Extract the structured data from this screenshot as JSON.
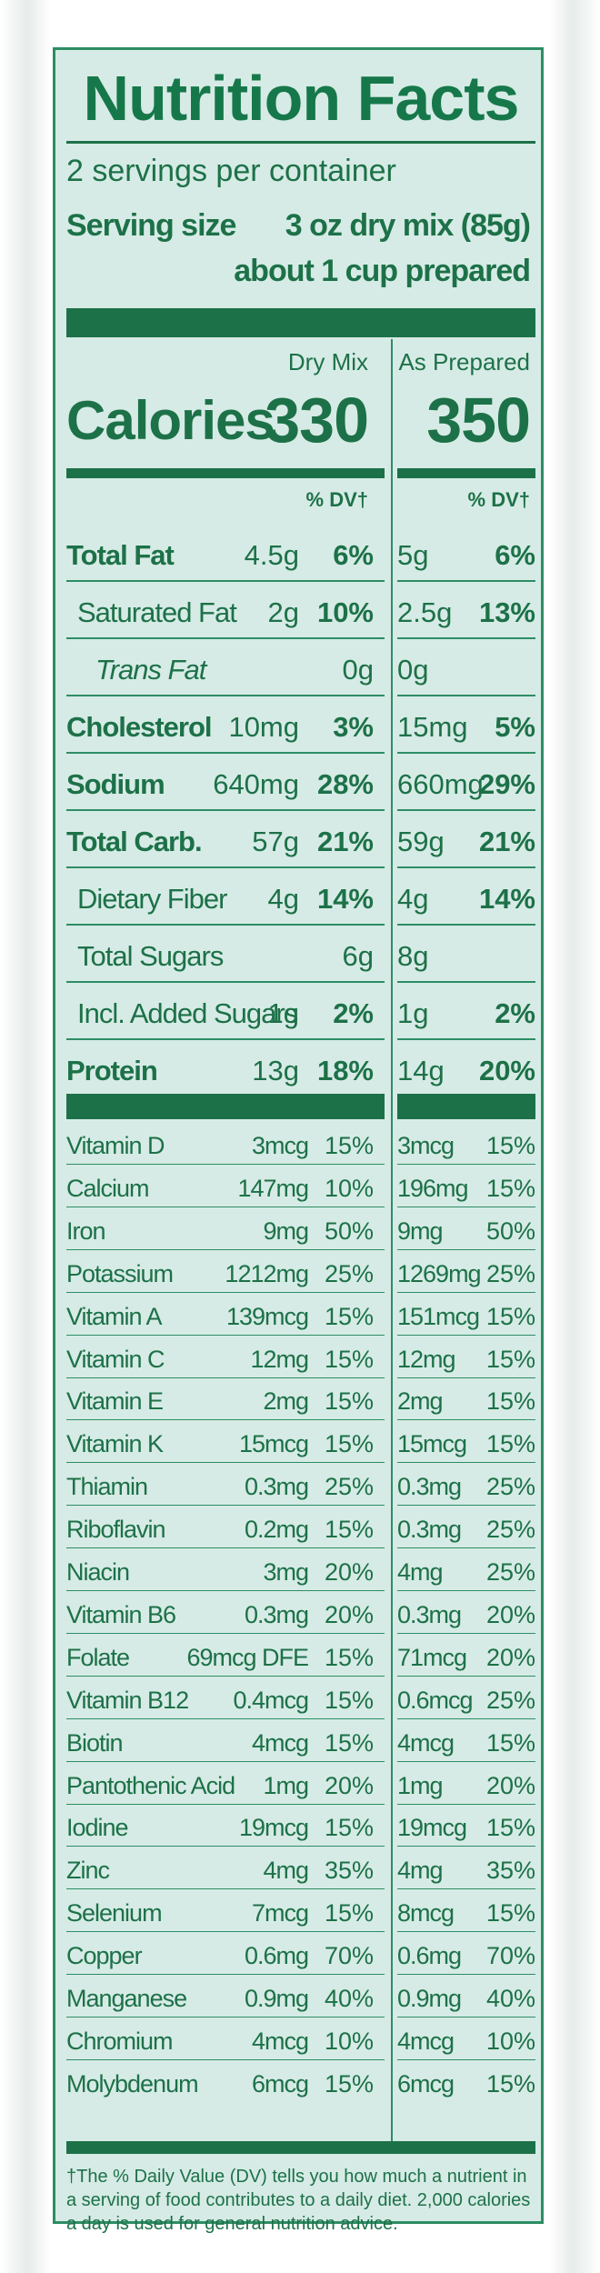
{
  "label": {
    "title": "Nutrition Facts",
    "servings_per_container": "2 servings per container",
    "serving_size_label": "Serving size",
    "serving_size_value": "3 oz dry mix (85g)",
    "serving_size_prepared": "about 1 cup prepared",
    "col_dry_mix": "Dry Mix",
    "col_as_prepared": "As Prepared",
    "calories_label": "Calories",
    "calories_dry": "330",
    "calories_prepared": "350",
    "dv_header": "% DV†",
    "footnote": "†The % Daily Value (DV) tells you how much a nutrient in a serving of  food contributes to a daily diet. 2,000 calories a day is used for general nutrition advice."
  },
  "macros": [
    {
      "name": "Total Fat",
      "bold": true,
      "indent": 0,
      "dry_amount": "4.5g",
      "dry_dv": "6%",
      "prep_amount": "5g",
      "prep_dv": "6%"
    },
    {
      "name": "Saturated Fat",
      "bold": false,
      "indent": 1,
      "dry_amount": "2g",
      "dry_dv": "10%",
      "prep_amount": "2.5g",
      "prep_dv": "13%"
    },
    {
      "name": "Trans Fat",
      "bold": false,
      "indent": 2,
      "dry_amount": "0g",
      "dry_dv": "",
      "prep_amount": "0g",
      "prep_dv": ""
    },
    {
      "name": "Cholesterol",
      "bold": true,
      "indent": 0,
      "dry_amount": "10mg",
      "dry_dv": "3%",
      "prep_amount": "15mg",
      "prep_dv": "5%"
    },
    {
      "name": "Sodium",
      "bold": true,
      "indent": 0,
      "dry_amount": "640mg",
      "dry_dv": "28%",
      "prep_amount": "660mg",
      "prep_dv": "29%"
    },
    {
      "name": "Total Carb.",
      "bold": true,
      "indent": 0,
      "dry_amount": "57g",
      "dry_dv": "21%",
      "prep_amount": "59g",
      "prep_dv": "21%"
    },
    {
      "name": "Dietary Fiber",
      "bold": false,
      "indent": 1,
      "dry_amount": "4g",
      "dry_dv": "14%",
      "prep_amount": "4g",
      "prep_dv": "14%"
    },
    {
      "name": "Total Sugars",
      "bold": false,
      "indent": 1,
      "dry_amount": "6g",
      "dry_dv": "",
      "prep_amount": "8g",
      "prep_dv": ""
    },
    {
      "name": "Incl. Added Sugars",
      "bold": false,
      "indent": 1,
      "dry_amount": "1g",
      "dry_dv": "2%",
      "prep_amount": "1g",
      "prep_dv": "2%"
    },
    {
      "name": "Protein",
      "bold": true,
      "indent": 0,
      "dry_amount": "13g",
      "dry_dv": "18%",
      "prep_amount": "14g",
      "prep_dv": "20%"
    }
  ],
  "vitamins": [
    {
      "name": "Vitamin D",
      "dry_amount": "3mcg",
      "dry_dv": "15%",
      "prep_amount": "3mcg",
      "prep_dv": "15%"
    },
    {
      "name": "Calcium",
      "dry_amount": "147mg",
      "dry_dv": "10%",
      "prep_amount": "196mg",
      "prep_dv": "15%"
    },
    {
      "name": "Iron",
      "dry_amount": "9mg",
      "dry_dv": "50%",
      "prep_amount": "9mg",
      "prep_dv": "50%"
    },
    {
      "name": "Potassium",
      "dry_amount": "1212mg",
      "dry_dv": "25%",
      "prep_amount": "1269mg",
      "prep_dv": "25%"
    },
    {
      "name": "Vitamin A",
      "dry_amount": "139mcg",
      "dry_dv": "15%",
      "prep_amount": "151mcg",
      "prep_dv": "15%"
    },
    {
      "name": "Vitamin C",
      "dry_amount": "12mg",
      "dry_dv": "15%",
      "prep_amount": "12mg",
      "prep_dv": "15%"
    },
    {
      "name": "Vitamin E",
      "dry_amount": "2mg",
      "dry_dv": "15%",
      "prep_amount": "2mg",
      "prep_dv": "15%"
    },
    {
      "name": "Vitamin K",
      "dry_amount": "15mcg",
      "dry_dv": "15%",
      "prep_amount": "15mcg",
      "prep_dv": "15%"
    },
    {
      "name": "Thiamin",
      "dry_amount": "0.3mg",
      "dry_dv": "25%",
      "prep_amount": "0.3mg",
      "prep_dv": "25%"
    },
    {
      "name": "Riboflavin",
      "dry_amount": "0.2mg",
      "dry_dv": "15%",
      "prep_amount": "0.3mg",
      "prep_dv": "25%"
    },
    {
      "name": "Niacin",
      "dry_amount": "3mg",
      "dry_dv": "20%",
      "prep_amount": "4mg",
      "prep_dv": "25%"
    },
    {
      "name": "Vitamin B6",
      "dry_amount": "0.3mg",
      "dry_dv": "20%",
      "prep_amount": "0.3mg",
      "prep_dv": "20%"
    },
    {
      "name": "Folate",
      "dry_amount": "69mcg DFE",
      "dry_dv": "15%",
      "prep_amount": "71mcg",
      "prep_dv": "20%"
    },
    {
      "name": "Vitamin B12",
      "dry_amount": "0.4mcg",
      "dry_dv": "15%",
      "prep_amount": "0.6mcg",
      "prep_dv": "25%"
    },
    {
      "name": "Biotin",
      "dry_amount": "4mcg",
      "dry_dv": "15%",
      "prep_amount": "4mcg",
      "prep_dv": "15%"
    },
    {
      "name": "Pantothenic Acid",
      "dry_amount": "1mg",
      "dry_dv": "20%",
      "prep_amount": "1mg",
      "prep_dv": "20%"
    },
    {
      "name": "Iodine",
      "dry_amount": "19mcg",
      "dry_dv": "15%",
      "prep_amount": "19mcg",
      "prep_dv": "15%"
    },
    {
      "name": "Zinc",
      "dry_amount": "4mg",
      "dry_dv": "35%",
      "prep_amount": "4mg",
      "prep_dv": "35%"
    },
    {
      "name": "Selenium",
      "dry_amount": "7mcg",
      "dry_dv": "15%",
      "prep_amount": "8mcg",
      "prep_dv": "15%"
    },
    {
      "name": "Copper",
      "dry_amount": "0.6mg",
      "dry_dv": "70%",
      "prep_amount": "0.6mg",
      "prep_dv": "70%"
    },
    {
      "name": "Manganese",
      "dry_amount": "0.9mg",
      "dry_dv": "40%",
      "prep_amount": "0.9mg",
      "prep_dv": "40%"
    },
    {
      "name": "Chromium",
      "dry_amount": "4mcg",
      "dry_dv": "10%",
      "prep_amount": "4mcg",
      "prep_dv": "10%"
    },
    {
      "name": "Molybdenum",
      "dry_amount": "6mcg",
      "dry_dv": "15%",
      "prep_amount": "6mcg",
      "prep_dv": "15%"
    }
  ],
  "colors": {
    "ink": "#1d7148",
    "panel": "#d6ebe6",
    "border": "#2e8d65"
  }
}
